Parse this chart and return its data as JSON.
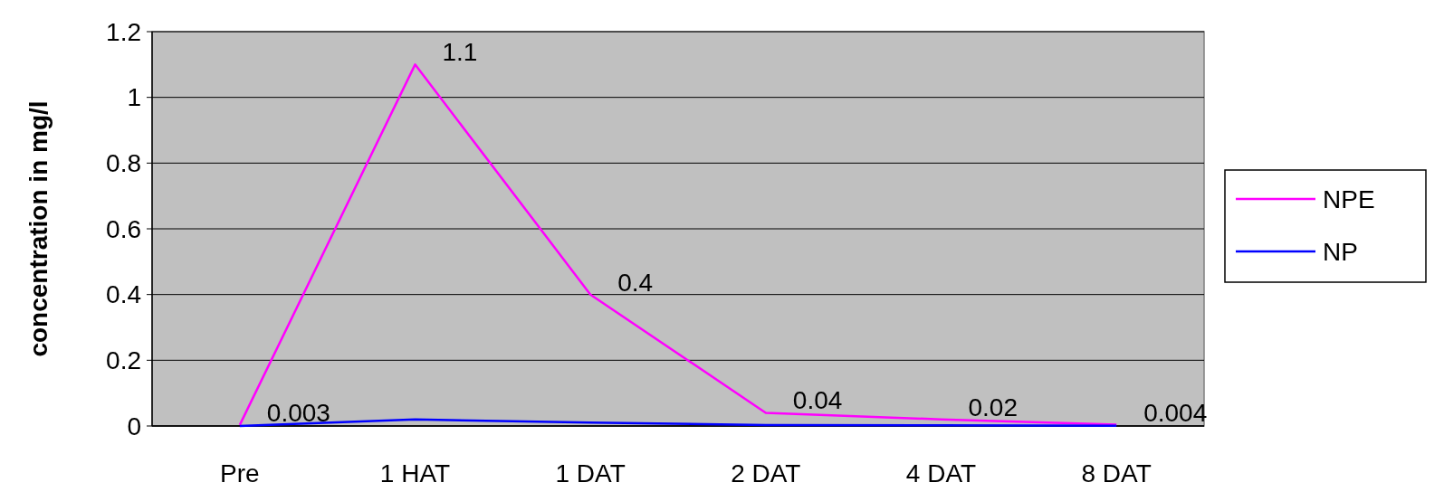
{
  "chart_data": {
    "type": "line",
    "ylabel": "concentration in mg/l",
    "categories": [
      "Pre",
      "1 HAT",
      "1 DAT",
      "2 DAT",
      "4 DAT",
      "8 DAT"
    ],
    "series": [
      {
        "name": "NPE",
        "color": "#ff00ff",
        "values": [
          0.003,
          1.1,
          0.4,
          0.04,
          0.02,
          0.004
        ],
        "value_labels": [
          "0.003",
          "1.1",
          "0.4",
          "0.04",
          "0.02",
          "0.004"
        ]
      },
      {
        "name": "NP",
        "color": "#0000ff",
        "values": [
          0,
          0.02,
          0.01,
          0.003,
          0.002,
          0.001
        ]
      }
    ],
    "ylim": [
      0,
      1.2
    ],
    "yticks": [
      0,
      0.2,
      0.4,
      0.6,
      0.8,
      1,
      1.2
    ],
    "grid": "y",
    "legend": "right",
    "marker": "none",
    "line_style": "solid"
  }
}
